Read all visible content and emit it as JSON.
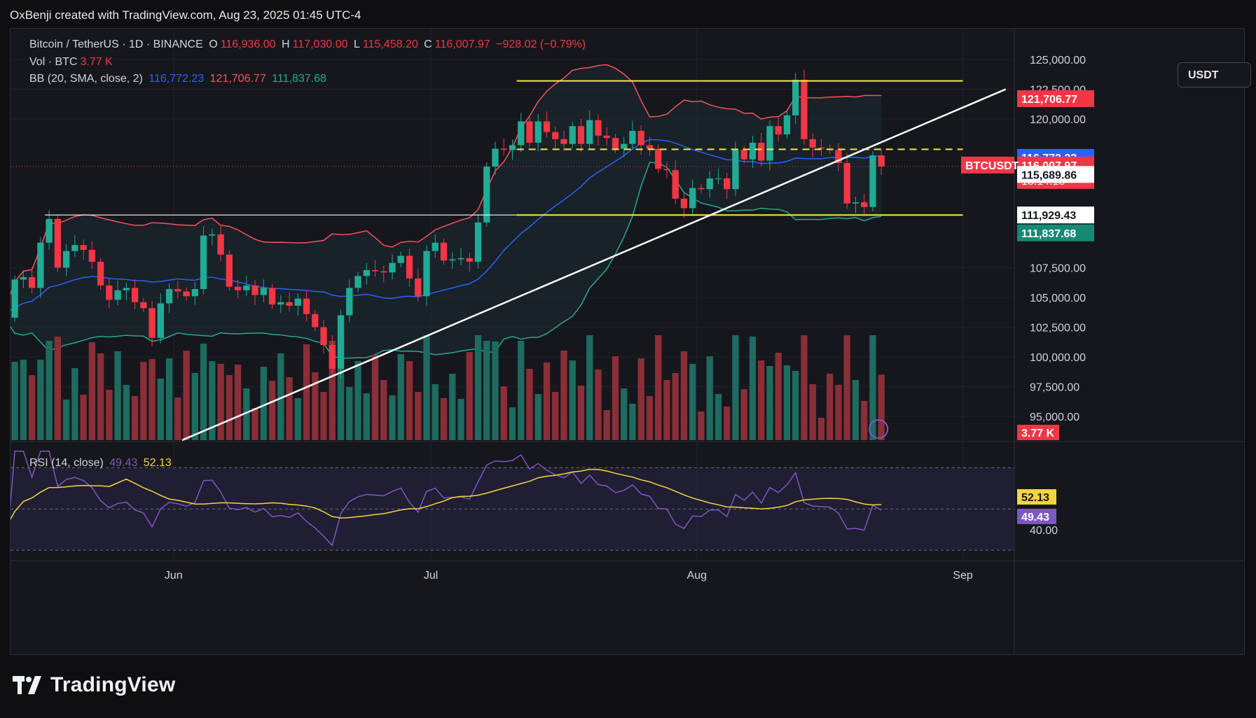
{
  "header": {
    "caption": "OxBenji created with TradingView.com, Aug 23, 2025 01:45 UTC-4"
  },
  "legend": {
    "symbol": "Bitcoin / TetherUS · 1D · BINANCE",
    "open_label": "O",
    "open": "116,936.00",
    "high_label": "H",
    "high": "117,030.00",
    "low_label": "L",
    "low": "115,458.20",
    "close_label": "C",
    "close": "116,007.97",
    "change": "−928.02 (−0.79%)",
    "vol_label": "Vol · BTC",
    "vol": "3.77 K",
    "bb_label": "BB (20, SMA, close, 2)",
    "bb_basis": "116,772.23",
    "bb_upper": "121,706.77",
    "bb_lower": "111,837.68",
    "rsi_label": "RSI (14, close)",
    "rsi_value": "49.43",
    "rsi_ma": "52.13"
  },
  "currency_button": "USDT",
  "ticker_label": "BTCUSDT",
  "countdown": "18:14:18",
  "brand": "TradingView",
  "colors": {
    "bg": "#16171c",
    "up": "#22ab94",
    "down": "#f23645",
    "up_vol": "#1e6b60",
    "down_vol": "#8a2e38",
    "bb_basis": "#2962ff",
    "bb_upper": "#f7525f",
    "bb_lower": "#22ab94",
    "bb_fill": "#1e2a35",
    "annot_yellow": "#f5ee3a",
    "trend_white": "#ffffff",
    "rsi": "#7e57c2",
    "rsi_ma": "#f5d53f"
  },
  "chart_data": {
    "type": "candlestick",
    "timeframe": "1D",
    "price_axis": {
      "min": 93000,
      "max": 127000,
      "ticks": [
        "125,000.00",
        "122,500.00",
        "120,000.00",
        "107,500.00",
        "105,000.00",
        "102,500.00",
        "100,000.00",
        "97,500.00",
        "95,000.00"
      ]
    },
    "time_axis": {
      "start": "2025-05-13",
      "end": "2025-09-07",
      "ticks": [
        {
          "date": "2025-06-01",
          "label": "Jun"
        },
        {
          "date": "2025-07-01",
          "label": "Jul"
        },
        {
          "date": "2025-08-01",
          "label": "Aug"
        },
        {
          "date": "2025-09-01",
          "label": "Sep"
        }
      ]
    },
    "last_date": "2025-08-22",
    "close": [
      104200,
      103800,
      103600,
      103500,
      103300,
      106500,
      106700,
      105800,
      109600,
      111600,
      107500,
      108900,
      109400,
      109000,
      108000,
      106000,
      104800,
      105600,
      105800,
      104600,
      104100,
      101600,
      104500,
      105700,
      105500,
      105100,
      105700,
      110200,
      110300,
      108600,
      105900,
      105600,
      106000,
      105200,
      105800,
      104400,
      104600,
      104300,
      104900,
      103600,
      102500,
      101000,
      99000,
      103500,
      105800,
      106800,
      107300,
      107200,
      107100,
      107900,
      108500,
      106600,
      105100,
      108900,
      109600,
      108100,
      108200,
      108300,
      108000,
      111300,
      116000,
      117500,
      117400,
      117800,
      119800,
      118000,
      119800,
      118900,
      118300,
      117900,
      119400,
      117900,
      119900,
      118600,
      118400,
      117500,
      117900,
      119000,
      117800,
      117500,
      115800,
      115700,
      113300,
      112500,
      114200,
      114100,
      115000,
      115000,
      114100,
      117400,
      116600,
      118000,
      116500,
      119400,
      118700,
      120300,
      123300,
      118300,
      117600,
      117500,
      117400,
      116300,
      112900,
      113000,
      112600,
      116936,
      116008
    ],
    "volume_label": "3.77 K",
    "bollinger": {
      "period": 20,
      "std": 2,
      "basis": 116772.23,
      "upper": 121706.77,
      "lower": 111837.68
    },
    "price_labels": [
      {
        "price": 121706.77,
        "text": "121,706.77",
        "role": "bb-upper"
      },
      {
        "price": 116772.23,
        "text": "116,772.23",
        "role": "bb-basis"
      },
      {
        "price": 116007.97,
        "text": "116,007.97",
        "role": "last-price"
      },
      {
        "price": 115689.86,
        "text": "115,689.86",
        "role": "marker"
      },
      {
        "price": 111929.43,
        "text": "111,929.43",
        "role": "horizontal-line"
      },
      {
        "price": 111837.68,
        "text": "111,837.68",
        "role": "bb-lower"
      }
    ],
    "annotations": {
      "range_top": {
        "price": 123200,
        "from": "2025-07-11",
        "to": "2025-09-01"
      },
      "range_mid_dashed": {
        "price": 117450,
        "from": "2025-07-11",
        "to": "2025-09-01"
      },
      "range_bottom": {
        "price": 111929.43,
        "from": "2025-07-11",
        "to": "2025-09-01"
      },
      "support_line": {
        "price": 111929.43,
        "from": "2025-05-17",
        "to": "2025-07-11"
      },
      "trendline": {
        "from": {
          "date": "2025-06-02",
          "price": 93000
        },
        "to": {
          "date": "2025-09-06",
          "price": 122500
        }
      }
    },
    "rsi": {
      "period": 14,
      "value": 49.43,
      "ma": 52.13,
      "levels": [
        70,
        50,
        30
      ],
      "range": [
        25,
        82
      ],
      "tick": "40.00",
      "last_values": [
        49.43
      ],
      "ma_label": "52.13"
    }
  }
}
